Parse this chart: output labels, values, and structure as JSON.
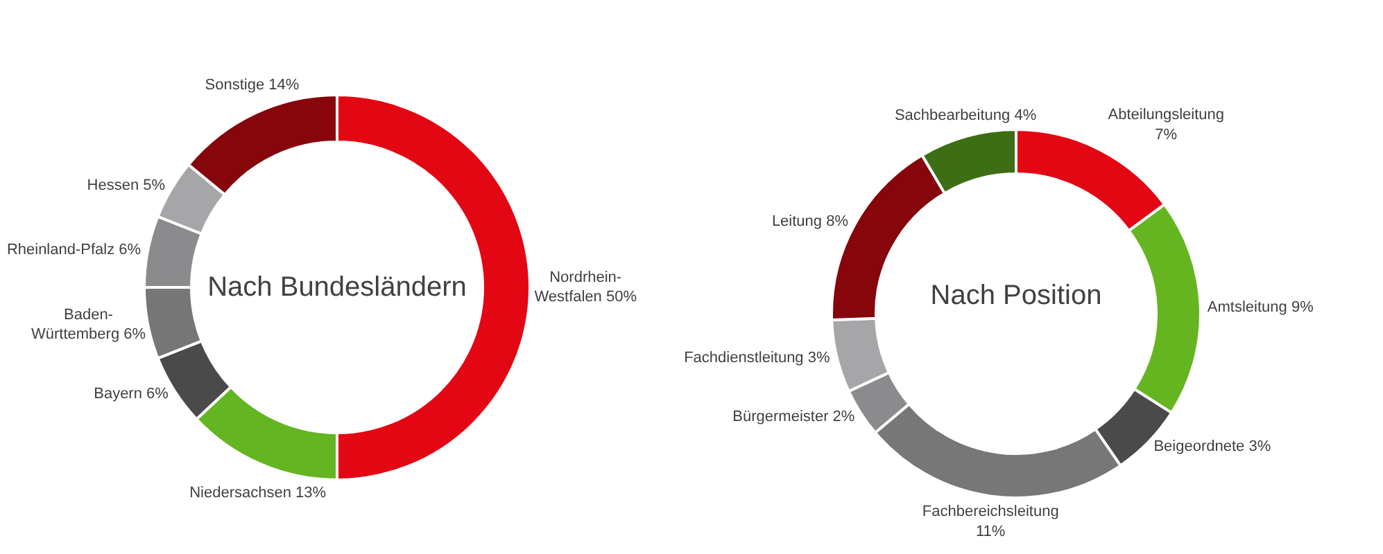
{
  "chart_data": [
    {
      "type": "donut",
      "title": "Nach Bundesländern",
      "categories": [
        "Nordrhein-Westfalen",
        "Niedersachsen",
        "Bayern",
        "Baden-Württemberg",
        "Rheinland-Pfalz",
        "Hessen",
        "Sonstige"
      ],
      "values": [
        50,
        13,
        6,
        6,
        6,
        5,
        14
      ],
      "value_labels": [
        "50%",
        "13%",
        "6%",
        "6%",
        "6%",
        "5%",
        "14%"
      ],
      "colors": [
        "#e30613",
        "#63b521",
        "#4a4a4a",
        "#767676",
        "#8b8a8c",
        "#a6a5a8",
        "#86060c"
      ]
    },
    {
      "type": "donut",
      "title": "Nach Position",
      "categories": [
        "Abteilungsleitung",
        "Amtsleitung",
        "Beigeordnete",
        "Fachbereichsleitung",
        "Bürgermeister",
        "Fachdienstleitung",
        "Leitung",
        "Sachbearbeitung"
      ],
      "values": [
        7,
        9,
        3,
        11,
        2,
        3,
        8,
        4
      ],
      "value_labels": [
        "7%",
        "9%",
        "3%",
        "11%",
        "2%",
        "3%",
        "8%",
        "4%"
      ],
      "colors": [
        "#e30613",
        "#65b521",
        "#4a4a4a",
        "#777777",
        "#8b8a8c",
        "#a6a5a8",
        "#86060c",
        "#3d6e14"
      ]
    }
  ]
}
